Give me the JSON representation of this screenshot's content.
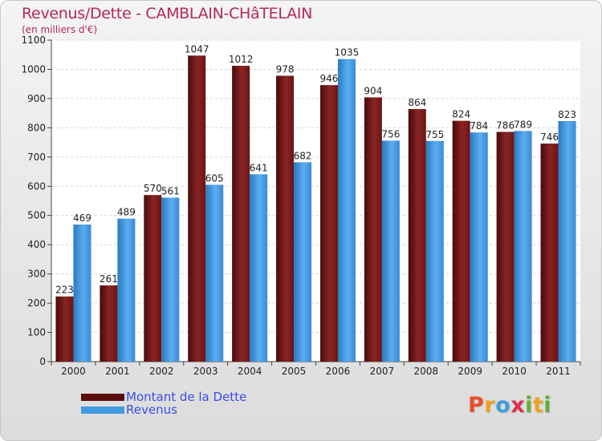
{
  "chart_data": {
    "type": "bar",
    "title": "Revenus/Dette - CAMBLAIN-CHâTELAIN",
    "subtitle": "(en milliers d'€)",
    "categories": [
      "2000",
      "2001",
      "2002",
      "2003",
      "2004",
      "2005",
      "2006",
      "2007",
      "2008",
      "2009",
      "2010",
      "2011"
    ],
    "series": [
      {
        "name": "Montant de la Dette",
        "color": "#7a1616",
        "values": [
          223,
          261,
          570,
          1047,
          1012,
          978,
          946,
          904,
          864,
          824,
          786,
          746
        ]
      },
      {
        "name": "Revenus",
        "color": "#3f9ae0",
        "values": [
          469,
          489,
          561,
          605,
          641,
          682,
          1035,
          756,
          755,
          784,
          789,
          823
        ]
      }
    ],
    "ylim": [
      0,
      1100
    ],
    "yticks": [
      0,
      100,
      200,
      300,
      400,
      500,
      600,
      700,
      800,
      900,
      1000,
      1100
    ],
    "grid": true,
    "legend_position": "bottom-left",
    "data_labels": true
  },
  "logo": {
    "letters": [
      "P",
      "r",
      "o",
      "x",
      "i",
      "t",
      "i"
    ],
    "colors": [
      "#e8502a",
      "#f0a020",
      "#3aa0d8",
      "#e03050",
      "#60b030",
      "#f0a020",
      "#60b030"
    ]
  }
}
